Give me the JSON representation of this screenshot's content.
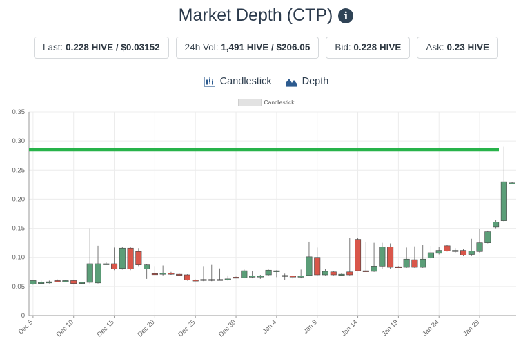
{
  "title": "Market Depth (CTP)",
  "info_icon": "info-circle-icon",
  "stats": [
    {
      "label": "Last:",
      "value": "0.228 HIVE / $0.03152"
    },
    {
      "label": "24h Vol:",
      "value": "1,491 HIVE / $206.05"
    },
    {
      "label": "Bid:",
      "value": "0.228 HIVE"
    },
    {
      "label": "Ask:",
      "value": "0.23 HIVE"
    }
  ],
  "tabs": [
    {
      "label": "Candlestick",
      "icon": "candlestick-chart-icon"
    },
    {
      "label": "Depth",
      "icon": "depth-chart-icon"
    }
  ],
  "colors": {
    "up": "#5b9e78",
    "down": "#d9564a",
    "line": "#28b34a",
    "grid": "#ececec"
  },
  "chart_data": {
    "type": "candlestick",
    "legend": "Candlestick",
    "legend_position": "top-center",
    "grid": true,
    "ylim": [
      0,
      0.35
    ],
    "y_ticks": [
      "0",
      "0.05",
      "0.10",
      "0.15",
      "0.20",
      "0.25",
      "0.30",
      "0.35"
    ],
    "x_ticks": [
      "Dec 5",
      "Dec 10",
      "Dec 15",
      "Dec 20",
      "Dec 25",
      "Dec 30",
      "Jan 4",
      "Jan 9",
      "Jan 14",
      "Jan 19",
      "Jan 24",
      "Jan 29"
    ],
    "horizontal_line": 0.285,
    "candles": [
      {
        "date": "Dec 5",
        "open": 0.054,
        "high": 0.06,
        "low": 0.053,
        "close": 0.06
      },
      {
        "date": "Dec 6",
        "open": 0.055,
        "high": 0.06,
        "low": 0.054,
        "close": 0.057
      },
      {
        "date": "Dec 7",
        "open": 0.056,
        "high": 0.06,
        "low": 0.055,
        "close": 0.058
      },
      {
        "date": "Dec 8",
        "open": 0.06,
        "high": 0.062,
        "low": 0.057,
        "close": 0.058
      },
      {
        "date": "Dec 9",
        "open": 0.058,
        "high": 0.061,
        "low": 0.057,
        "close": 0.06
      },
      {
        "date": "Dec 10",
        "open": 0.06,
        "high": 0.061,
        "low": 0.054,
        "close": 0.055
      },
      {
        "date": "Dec 11",
        "open": 0.055,
        "high": 0.058,
        "low": 0.054,
        "close": 0.057
      },
      {
        "date": "Dec 12",
        "open": 0.057,
        "high": 0.15,
        "low": 0.055,
        "close": 0.089
      },
      {
        "date": "Dec 13",
        "open": 0.056,
        "high": 0.12,
        "low": 0.055,
        "close": 0.089
      },
      {
        "date": "Dec 14",
        "open": 0.089,
        "high": 0.092,
        "low": 0.087,
        "close": 0.089
      },
      {
        "date": "Dec 15",
        "open": 0.089,
        "high": 0.117,
        "low": 0.078,
        "close": 0.08
      },
      {
        "date": "Dec 16",
        "open": 0.081,
        "high": 0.118,
        "low": 0.079,
        "close": 0.116
      },
      {
        "date": "Dec 17",
        "open": 0.116,
        "high": 0.118,
        "low": 0.078,
        "close": 0.08
      },
      {
        "date": "Dec 18",
        "open": 0.11,
        "high": 0.116,
        "low": 0.085,
        "close": 0.087
      },
      {
        "date": "Dec 19",
        "open": 0.08,
        "high": 0.089,
        "low": 0.063,
        "close": 0.087
      },
      {
        "date": "Dec 20",
        "open": 0.072,
        "high": 0.085,
        "low": 0.07,
        "close": 0.071
      },
      {
        "date": "Dec 21",
        "open": 0.071,
        "high": 0.086,
        "low": 0.069,
        "close": 0.073
      },
      {
        "date": "Dec 22",
        "open": 0.073,
        "high": 0.075,
        "low": 0.07,
        "close": 0.071
      },
      {
        "date": "Dec 23",
        "open": 0.071,
        "high": 0.073,
        "low": 0.069,
        "close": 0.07
      },
      {
        "date": "Dec 24",
        "open": 0.07,
        "high": 0.071,
        "low": 0.06,
        "close": 0.061
      },
      {
        "date": "Dec 25",
        "open": 0.061,
        "high": 0.062,
        "low": 0.059,
        "close": 0.06
      },
      {
        "date": "Dec 26",
        "open": 0.061,
        "high": 0.085,
        "low": 0.059,
        "close": 0.062
      },
      {
        "date": "Dec 27",
        "open": 0.061,
        "high": 0.087,
        "low": 0.059,
        "close": 0.062
      },
      {
        "date": "Dec 28",
        "open": 0.061,
        "high": 0.081,
        "low": 0.06,
        "close": 0.062
      },
      {
        "date": "Dec 29",
        "open": 0.062,
        "high": 0.069,
        "low": 0.06,
        "close": 0.063
      },
      {
        "date": "Dec 30",
        "open": 0.066,
        "high": 0.067,
        "low": 0.064,
        "close": 0.065
      },
      {
        "date": "Dec 31",
        "open": 0.065,
        "high": 0.079,
        "low": 0.064,
        "close": 0.077
      },
      {
        "date": "Jan 1",
        "open": 0.066,
        "high": 0.076,
        "low": 0.064,
        "close": 0.068
      },
      {
        "date": "Jan 2",
        "open": 0.067,
        "high": 0.07,
        "low": 0.063,
        "close": 0.068
      },
      {
        "date": "Jan 3",
        "open": 0.07,
        "high": 0.079,
        "low": 0.069,
        "close": 0.078
      },
      {
        "date": "Jan 4",
        "open": 0.077,
        "high": 0.078,
        "low": 0.066,
        "close": 0.077
      },
      {
        "date": "Jan 5",
        "open": 0.068,
        "high": 0.072,
        "low": 0.061,
        "close": 0.069
      },
      {
        "date": "Jan 6",
        "open": 0.068,
        "high": 0.069,
        "low": 0.063,
        "close": 0.067
      },
      {
        "date": "Jan 7",
        "open": 0.066,
        "high": 0.079,
        "low": 0.064,
        "close": 0.068
      },
      {
        "date": "Jan 8",
        "open": 0.069,
        "high": 0.127,
        "low": 0.068,
        "close": 0.101
      },
      {
        "date": "Jan 9",
        "open": 0.1,
        "high": 0.117,
        "low": 0.069,
        "close": 0.07
      },
      {
        "date": "Jan 10",
        "open": 0.07,
        "high": 0.08,
        "low": 0.069,
        "close": 0.076
      },
      {
        "date": "Jan 11",
        "open": 0.075,
        "high": 0.076,
        "low": 0.069,
        "close": 0.07
      },
      {
        "date": "Jan 12",
        "open": 0.07,
        "high": 0.073,
        "low": 0.068,
        "close": 0.071
      },
      {
        "date": "Jan 13",
        "open": 0.075,
        "high": 0.134,
        "low": 0.069,
        "close": 0.07
      },
      {
        "date": "Jan 14",
        "open": 0.131,
        "high": 0.133,
        "low": 0.076,
        "close": 0.077
      },
      {
        "date": "Jan 15",
        "open": 0.077,
        "high": 0.127,
        "low": 0.075,
        "close": 0.076
      },
      {
        "date": "Jan 16",
        "open": 0.076,
        "high": 0.125,
        "low": 0.075,
        "close": 0.085
      },
      {
        "date": "Jan 17",
        "open": 0.085,
        "high": 0.125,
        "low": 0.08,
        "close": 0.118
      },
      {
        "date": "Jan 18",
        "open": 0.118,
        "high": 0.124,
        "low": 0.08,
        "close": 0.083
      },
      {
        "date": "Jan 19",
        "open": 0.084,
        "high": 0.085,
        "low": 0.082,
        "close": 0.083
      },
      {
        "date": "Jan 20",
        "open": 0.083,
        "high": 0.117,
        "low": 0.082,
        "close": 0.097
      },
      {
        "date": "Jan 21",
        "open": 0.096,
        "high": 0.119,
        "low": 0.082,
        "close": 0.083
      },
      {
        "date": "Jan 22",
        "open": 0.083,
        "high": 0.121,
        "low": 0.082,
        "close": 0.097
      },
      {
        "date": "Jan 23",
        "open": 0.099,
        "high": 0.12,
        "low": 0.097,
        "close": 0.108
      },
      {
        "date": "Jan 24",
        "open": 0.107,
        "high": 0.118,
        "low": 0.105,
        "close": 0.112
      },
      {
        "date": "Jan 25",
        "open": 0.12,
        "high": 0.121,
        "low": 0.11,
        "close": 0.111
      },
      {
        "date": "Jan 26",
        "open": 0.11,
        "high": 0.116,
        "low": 0.108,
        "close": 0.112
      },
      {
        "date": "Jan 27",
        "open": 0.112,
        "high": 0.114,
        "low": 0.102,
        "close": 0.104
      },
      {
        "date": "Jan 28",
        "open": 0.105,
        "high": 0.132,
        "low": 0.102,
        "close": 0.111
      },
      {
        "date": "Jan 29",
        "open": 0.11,
        "high": 0.149,
        "low": 0.108,
        "close": 0.125
      },
      {
        "date": "Jan 30",
        "open": 0.125,
        "high": 0.146,
        "low": 0.124,
        "close": 0.144
      },
      {
        "date": "Jan 31",
        "open": 0.152,
        "high": 0.164,
        "low": 0.15,
        "close": 0.161
      },
      {
        "date": "Feb 1",
        "open": 0.163,
        "high": 0.29,
        "low": 0.161,
        "close": 0.23
      },
      {
        "date": "Feb 2",
        "open": 0.228,
        "high": 0.229,
        "low": 0.227,
        "close": 0.228
      }
    ]
  }
}
